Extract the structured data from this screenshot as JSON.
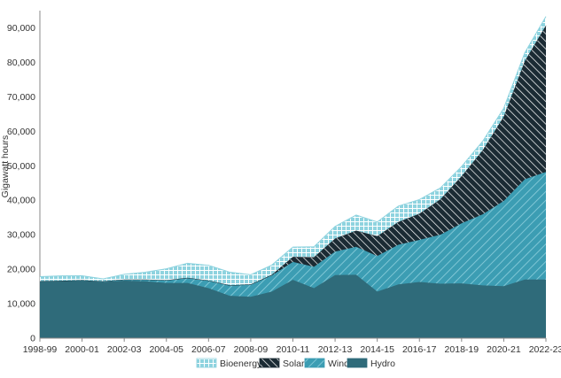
{
  "chart_data": {
    "type": "area",
    "stacked": true,
    "ylabel": "Gigawatt hours",
    "ylim": [
      0,
      95000
    ],
    "yticks": [
      0,
      10000,
      20000,
      30000,
      40000,
      50000,
      60000,
      70000,
      80000,
      90000
    ],
    "ytick_labels": [
      "0",
      "10,000",
      "20,000",
      "30,000",
      "40,000",
      "50,000",
      "60,000",
      "70,000",
      "80,000",
      "90,000"
    ],
    "x": [
      "1998-99",
      "1999-00",
      "2000-01",
      "2001-02",
      "2002-03",
      "2003-04",
      "2004-05",
      "2005-06",
      "2006-07",
      "2007-08",
      "2008-09",
      "2009-10",
      "2010-11",
      "2011-12",
      "2012-13",
      "2013-14",
      "2014-15",
      "2015-16",
      "2016-17",
      "2017-18",
      "2018-19",
      "2019-20",
      "2020-21",
      "2021-22",
      "2022-23"
    ],
    "xtick_labels": [
      "1998-99",
      "2000-01",
      "2002-03",
      "2004-05",
      "2006-07",
      "2008-09",
      "2010-11",
      "2012-13",
      "2014-15",
      "2016-17",
      "2018-19",
      "2020-21",
      "2022-23"
    ],
    "legend_position": "bottom",
    "grid": false,
    "series": [
      {
        "name": "Hydro",
        "color": "#2f6b7a",
        "values": [
          16500,
          16600,
          16700,
          16300,
          16700,
          16500,
          16000,
          16000,
          14500,
          12300,
          12000,
          13500,
          16900,
          14500,
          18300,
          18400,
          13500,
          15600,
          16300,
          15800,
          15900,
          15300,
          15100,
          17000,
          17000
        ]
      },
      {
        "name": "Wind",
        "color": "#3c9db3",
        "values": [
          20,
          60,
          100,
          200,
          300,
          500,
          800,
          1500,
          2200,
          3000,
          3500,
          4700,
          5200,
          6200,
          6800,
          8100,
          10300,
          11500,
          12200,
          14200,
          17400,
          20600,
          24700,
          29100,
          31200
        ]
      },
      {
        "name": "Solar",
        "color": "#1b2b34",
        "values": [
          10,
          10,
          10,
          10,
          10,
          20,
          20,
          20,
          30,
          50,
          100,
          200,
          1500,
          2800,
          3800,
          4700,
          5800,
          6600,
          7600,
          10300,
          13700,
          18600,
          24500,
          34300,
          42500
        ]
      },
      {
        "name": "Bioenergy",
        "color": "#8ed3df",
        "values": [
          1300,
          1400,
          1300,
          700,
          1500,
          2100,
          3300,
          4200,
          4400,
          3800,
          2800,
          2800,
          2800,
          3000,
          3500,
          4500,
          4100,
          4600,
          4100,
          3300,
          2800,
          2600,
          2400,
          2400,
          2600
        ]
      }
    ]
  }
}
